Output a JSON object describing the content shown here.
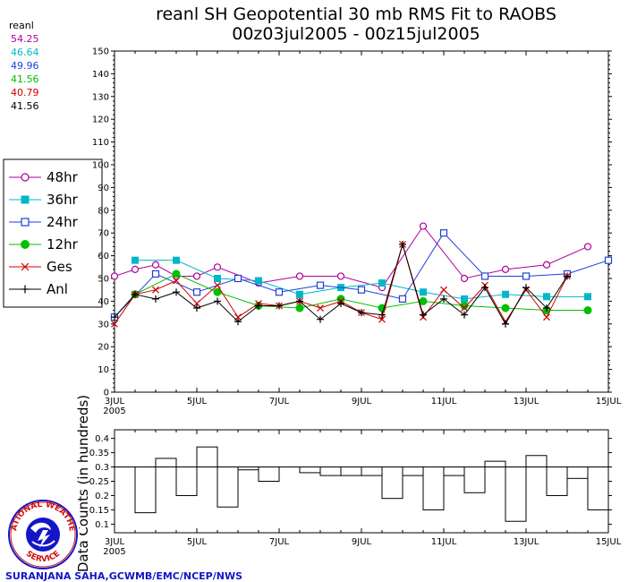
{
  "title_line1": "reanl SH Geopotential 30 mb RMS Fit to RAOBS",
  "title_line2": "00z03jul2005 - 00z15jul2005",
  "stats": {
    "header": "reanl",
    "values": [
      {
        "text": "54.25",
        "color": "#b0009a"
      },
      {
        "text": "46.64",
        "color": "#00b8c8"
      },
      {
        "text": "49.96",
        "color": "#1f3fd8"
      },
      {
        "text": "41.56",
        "color": "#00c000"
      },
      {
        "text": "40.79",
        "color": "#d00000"
      },
      {
        "text": "41.56",
        "color": "#000000"
      }
    ]
  },
  "logo": {
    "top_text": "NATIONAL WEATHER",
    "bottom_text": "SERVICE"
  },
  "credit": "SURANJANA SAHA,GCWMB/EMC/NCEP/NWS",
  "chart_data": [
    {
      "type": "line",
      "x_start": "2005-07-03",
      "x_step_days": 0.5,
      "xlim": [
        "2005-07-03",
        "2005-07-15"
      ],
      "ylim": [
        0,
        150
      ],
      "yticks": [
        0,
        10,
        20,
        30,
        40,
        50,
        60,
        70,
        80,
        90,
        100,
        110,
        120,
        130,
        140,
        150
      ],
      "xtick_labels": [
        "3JUL",
        "5JUL",
        "7JUL",
        "9JUL",
        "11JUL",
        "13JUL",
        "15JUL"
      ],
      "xtick_sublabel": "2005",
      "grid": false,
      "legend_position": "left",
      "series": [
        {
          "name": "48hr",
          "color": "#b0009a",
          "marker": "circle-open",
          "values": [
            51,
            54,
            56,
            51,
            51,
            55,
            null,
            48,
            null,
            51,
            null,
            51,
            null,
            46,
            null,
            73,
            null,
            50,
            null,
            54,
            null,
            56,
            null,
            64,
            null
          ]
        },
        {
          "name": "36hr",
          "color": "#00b8c8",
          "marker": "square-filled",
          "values": [
            null,
            58,
            null,
            58,
            null,
            50,
            null,
            49,
            null,
            43,
            null,
            46,
            null,
            48,
            null,
            44,
            null,
            41,
            null,
            43,
            null,
            42,
            null,
            42,
            null
          ]
        },
        {
          "name": "24hr",
          "color": "#1f3fd8",
          "marker": "square-open",
          "values": [
            33,
            null,
            52,
            null,
            44,
            null,
            50,
            null,
            44,
            null,
            47,
            null,
            45,
            null,
            41,
            null,
            70,
            null,
            51,
            null,
            51,
            null,
            52,
            null,
            58
          ]
        },
        {
          "name": "12hr",
          "color": "#00c000",
          "marker": "circle-filled",
          "values": [
            null,
            43,
            null,
            52,
            null,
            44,
            null,
            38,
            null,
            37,
            null,
            41,
            null,
            37,
            null,
            40,
            null,
            38,
            null,
            37,
            null,
            36,
            null,
            36,
            null
          ]
        },
        {
          "name": "Ges",
          "color": "#d00000",
          "marker": "x",
          "values": [
            30,
            43,
            45,
            49,
            39,
            47,
            33,
            39,
            38,
            40,
            37,
            40,
            35,
            32,
            65,
            33,
            45,
            37,
            47,
            31,
            45,
            33,
            51
          ]
        },
        {
          "name": "Anl",
          "color": "#000000",
          "marker": "plus",
          "values": [
            33,
            43,
            41,
            44,
            37,
            40,
            31,
            38,
            38,
            40,
            32,
            39,
            35,
            34,
            65,
            34,
            41,
            34,
            46,
            30,
            46,
            37,
            51
          ]
        }
      ]
    },
    {
      "type": "bar",
      "ylabel": "Data Counts (in hundreds)",
      "ylim": [
        0.07,
        0.43
      ],
      "yticks": [
        0.1,
        0.15,
        0.2,
        0.25,
        0.3,
        0.35,
        0.4
      ],
      "reference_line": 0.3,
      "xtick_labels": [
        "3JUL",
        "5JUL",
        "7JUL",
        "9JUL",
        "11JUL",
        "13JUL",
        "15JUL"
      ],
      "xtick_sublabel": "2005",
      "values": [
        0.3,
        0.14,
        0.33,
        0.2,
        0.37,
        0.16,
        0.29,
        0.25,
        0.3,
        0.28,
        0.27,
        0.27,
        0.27,
        0.19,
        0.27,
        0.15,
        0.27,
        0.21,
        0.32,
        0.11,
        0.34,
        0.2,
        0.26,
        0.15
      ]
    }
  ]
}
